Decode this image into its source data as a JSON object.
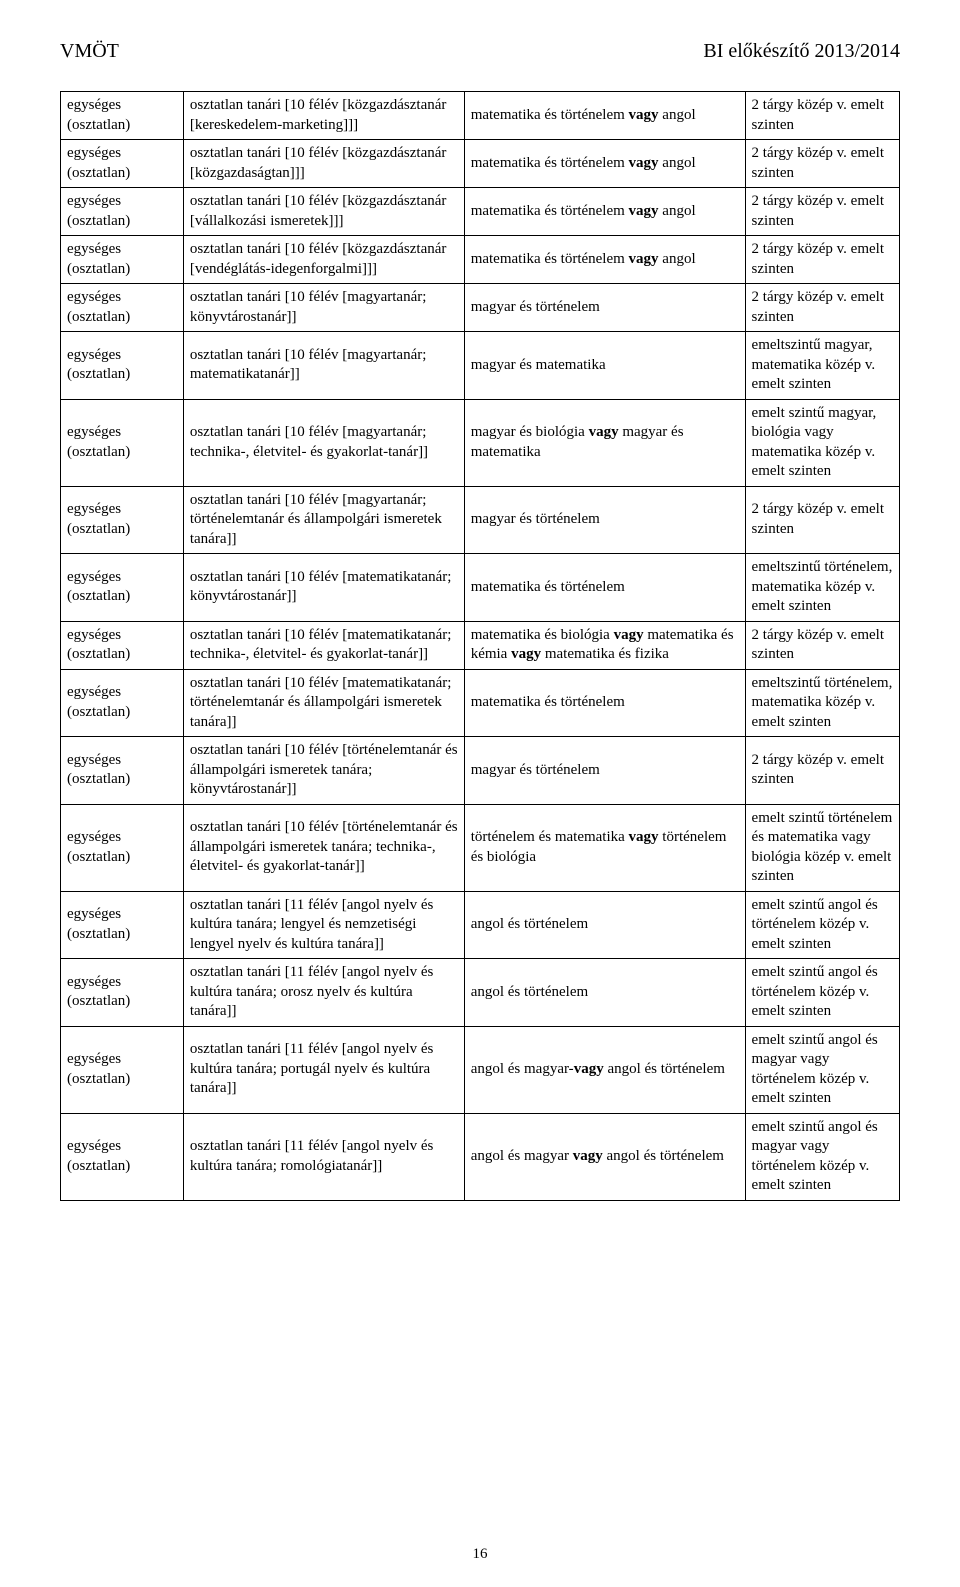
{
  "header_left": "VMÖT",
  "header_right": "BI előkészítő 2013/2014",
  "page_number": "16",
  "common_col1": "egységes (osztatlan)",
  "rows": [
    {
      "col2": "osztatlan tanári [10 félév [közgazdásztanár [kereskedelem-marketing]]]",
      "col3_parts": [
        {
          "t": "matematika és történelem ",
          "b": false
        },
        {
          "t": "vagy",
          "b": true
        },
        {
          "t": " angol",
          "b": false
        }
      ],
      "col4": "2 tárgy közép v. emelt szinten"
    },
    {
      "col2": "osztatlan tanári [10 félév [közgazdásztanár [közgazdaságtan]]]",
      "col3_parts": [
        {
          "t": "matematika és történelem ",
          "b": false
        },
        {
          "t": "vagy",
          "b": true
        },
        {
          "t": " angol",
          "b": false
        }
      ],
      "col4": "2 tárgy közép v. emelt szinten"
    },
    {
      "col2": "osztatlan tanári [10 félév [közgazdásztanár [vállalkozási ismeretek]]]",
      "col3_parts": [
        {
          "t": "matematika és történelem ",
          "b": false
        },
        {
          "t": "vagy",
          "b": true
        },
        {
          "t": " angol",
          "b": false
        }
      ],
      "col4": "2 tárgy közép v. emelt szinten"
    },
    {
      "col2": "osztatlan tanári [10 félév [közgazdásztanár [vendéglátás-idegenforgalmi]]]",
      "col3_parts": [
        {
          "t": "matematika és történelem ",
          "b": false
        },
        {
          "t": "vagy",
          "b": true
        },
        {
          "t": " angol",
          "b": false
        }
      ],
      "col4": "2 tárgy közép v. emelt szinten"
    },
    {
      "col2": "osztatlan tanári [10 félév [magyartanár; könyvtárostanár]]",
      "col3_parts": [
        {
          "t": "magyar és történelem",
          "b": false
        }
      ],
      "col4": "2 tárgy közép v. emelt szinten"
    },
    {
      "col2": "osztatlan tanári [10 félév [magyartanár; matematikatanár]]",
      "col3_parts": [
        {
          "t": "magyar és matematika",
          "b": false
        }
      ],
      "col4": "emeltszintű magyar, matematika közép v. emelt szinten"
    },
    {
      "col2": "osztatlan tanári [10 félév [magyartanár; technika-, életvitel- és gyakorlat-tanár]]",
      "col3_parts": [
        {
          "t": "magyar és biológia ",
          "b": false
        },
        {
          "t": "vagy",
          "b": true
        },
        {
          "t": " magyar és matematika",
          "b": false
        }
      ],
      "col4": "emelt szintű magyar, biológia vagy matematika közép v. emelt szinten"
    },
    {
      "col2": "osztatlan tanári [10 félév [magyartanár; történelemtanár és állampolgári ismeretek tanára]]",
      "col3_parts": [
        {
          "t": "magyar és történelem",
          "b": false
        }
      ],
      "col4": "2 tárgy közép v. emelt szinten"
    },
    {
      "col2": "osztatlan tanári [10 félév [matematikatanár; könyvtárostanár]]",
      "col3_parts": [
        {
          "t": "matematika és történelem",
          "b": false
        }
      ],
      "col4": "emeltszintű történelem, matematika közép v. emelt szinten"
    },
    {
      "col2": "osztatlan tanári [10 félév [matematikatanár; technika-, életvitel- és gyakorlat-tanár]]",
      "col3_parts": [
        {
          "t": "matematika és biológia ",
          "b": false
        },
        {
          "t": "vagy",
          "b": true
        },
        {
          "t": " matematika és kémia ",
          "b": false
        },
        {
          "t": "vagy",
          "b": true
        },
        {
          "t": " matematika és fizika",
          "b": false
        }
      ],
      "col4": "2 tárgy közép v. emelt szinten"
    },
    {
      "col2": "osztatlan tanári [10 félév [matematikatanár; történelemtanár és állampolgári ismeretek tanára]]",
      "col3_parts": [
        {
          "t": "matematika és történelem",
          "b": false
        }
      ],
      "col4": "emeltszintű történelem, matematika közép v. emelt szinten"
    },
    {
      "col2": "osztatlan tanári [10 félév [történelemtanár és állampolgári ismeretek tanára; könyvtárostanár]]",
      "col3_parts": [
        {
          "t": "magyar és történelem",
          "b": false
        }
      ],
      "col4": "2 tárgy közép v. emelt szinten"
    },
    {
      "col2": "osztatlan tanári [10 félév [történelemtanár és állampolgári ismeretek tanára; technika-, életvitel- és gyakorlat-tanár]]",
      "col3_parts": [
        {
          "t": "történelem és matematika ",
          "b": false
        },
        {
          "t": "vagy",
          "b": true
        },
        {
          "t": " történelem és biológia",
          "b": false
        }
      ],
      "col4": "emelt szintű történelem és matematika vagy biológia közép v. emelt szinten"
    },
    {
      "col2": "osztatlan tanári [11 félév [angol nyelv és kultúra tanára; lengyel és nemzetiségi lengyel nyelv és kultúra tanára]]",
      "col3_parts": [
        {
          "t": "angol és történelem",
          "b": false
        }
      ],
      "col4": "emelt szintű angol és történelem közép v. emelt szinten"
    },
    {
      "col2": "osztatlan tanári [11 félév [angol nyelv és kultúra tanára; orosz nyelv és kultúra tanára]]",
      "col3_parts": [
        {
          "t": "angol és történelem",
          "b": false
        }
      ],
      "col4": "emelt szintű angol és történelem közép v. emelt szinten"
    },
    {
      "col2": "osztatlan tanári [11 félév [angol nyelv és kultúra tanára; portugál nyelv és kultúra tanára]]",
      "col3_parts": [
        {
          "t": "angol és magyar-",
          "b": false
        },
        {
          "t": "vagy",
          "b": true
        },
        {
          "t": " angol és történelem",
          "b": false
        }
      ],
      "col4": "emelt szintű angol és magyar vagy történelem közép v. emelt szinten"
    },
    {
      "col2": "osztatlan tanári [11 félév [angol nyelv és kultúra tanára; romológiatanár]]",
      "col3_parts": [
        {
          "t": "angol és magyar ",
          "b": false
        },
        {
          "t": "vagy",
          "b": true
        },
        {
          "t": " angol és történelem",
          "b": false
        }
      ],
      "col4": "emelt szintű angol és magyar vagy történelem közép v. emelt szinten"
    }
  ]
}
